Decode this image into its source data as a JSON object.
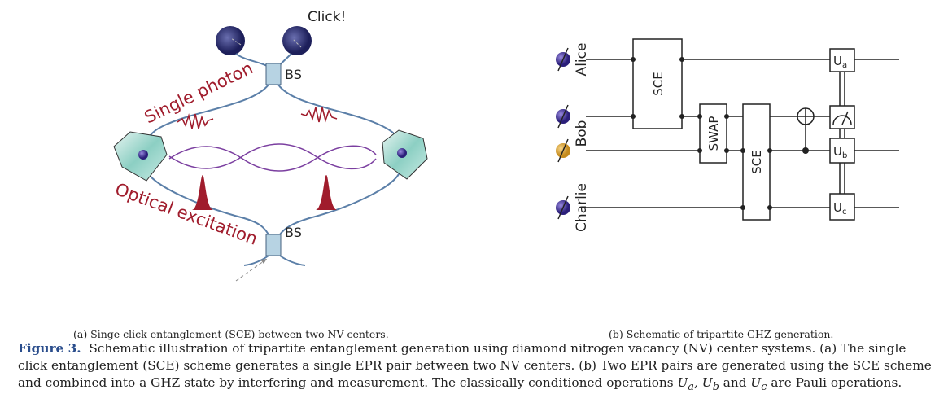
{
  "panel_a": {
    "detector_label": "Click!",
    "bs_top": "BS",
    "bs_bottom": "BS",
    "photon_label": "Single photon",
    "excitation_label": "Optical excitation",
    "subcaption": "(a) Singe click entanglement (SCE) between two NV centers."
  },
  "panel_b": {
    "qubits": [
      "Alice",
      "Bob",
      "Charlie"
    ],
    "gates": {
      "sce1": "SCE",
      "swap": "SWAP",
      "sce2": "SCE",
      "ua": {
        "symbol": "U",
        "sub": "a"
      },
      "ub": {
        "symbol": "U",
        "sub": "b"
      },
      "uc": {
        "symbol": "U",
        "sub": "c"
      }
    },
    "subcaption": "(b) Schematic of tripartite GHZ generation."
  },
  "caption": {
    "label": "Figure 3.",
    "body": "Schematic illustration of tripartite entanglement generation using diamond nitrogen vacancy (NV) center systems. (a) The single click entanglement (SCE) scheme generates a single EPR pair between two NV centers. (b) Two EPR pairs are generated using the SCE scheme and combined into a GHZ state by interfering and measurement. The classically conditioned operations",
    "operators": [
      {
        "symbol": "U",
        "sub": "a"
      },
      {
        "symbol": "U",
        "sub": "b"
      },
      {
        "symbol": "U",
        "sub": "c"
      }
    ],
    "separators": [
      ",",
      "and"
    ],
    "tail": "are Pauli operations."
  }
}
